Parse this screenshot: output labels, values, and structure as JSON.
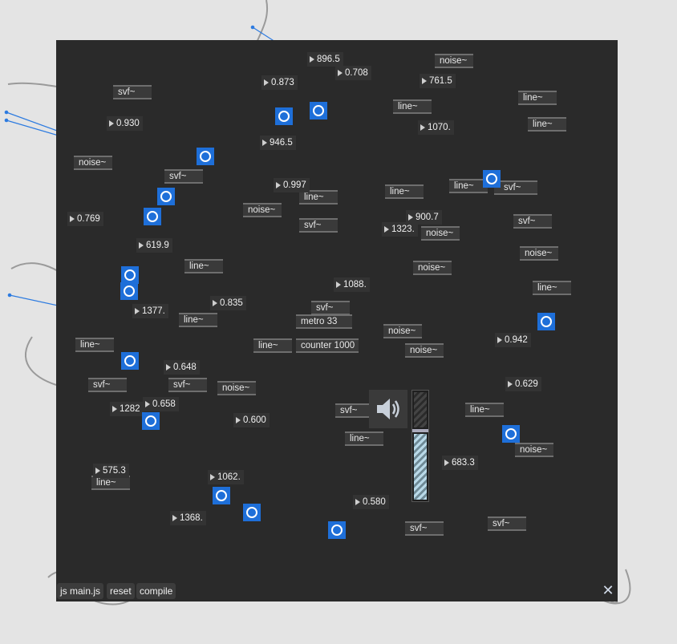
{
  "objects": [
    {
      "label": "svf~"
    },
    {
      "label": "noise~"
    },
    {
      "label": "noise~"
    },
    {
      "label": "svf~"
    },
    {
      "label": "line~"
    },
    {
      "label": "line~"
    },
    {
      "label": "line~"
    },
    {
      "label": "line~"
    },
    {
      "label": "svf~"
    },
    {
      "label": "noise~"
    },
    {
      "label": "svf~"
    },
    {
      "label": "line~"
    },
    {
      "label": "noise~"
    },
    {
      "label": "svf~"
    },
    {
      "label": "noise~"
    },
    {
      "label": "line~"
    },
    {
      "label": "line~"
    },
    {
      "label": "line~"
    },
    {
      "label": "line~"
    },
    {
      "label": "noise~"
    },
    {
      "label": "noise~"
    },
    {
      "label": "noise~"
    },
    {
      "label": "metro 33"
    },
    {
      "label": "counter 1000"
    },
    {
      "label": "line~"
    },
    {
      "label": "svf~"
    },
    {
      "label": "svf~"
    },
    {
      "label": "noise~"
    },
    {
      "label": "svf~"
    },
    {
      "label": "line~"
    },
    {
      "label": "line~"
    },
    {
      "label": "noise~"
    },
    {
      "label": "line~"
    },
    {
      "label": "svf~"
    },
    {
      "label": "svf~"
    },
    {
      "label": "svf~"
    },
    {
      "label": "line~"
    },
    {
      "label": "svf~"
    }
  ],
  "numbers": [
    {
      "value": "896.5"
    },
    {
      "value": "0.873"
    },
    {
      "value": "0.708"
    },
    {
      "value": "761.5"
    },
    {
      "value": "0.930"
    },
    {
      "value": "1070."
    },
    {
      "value": "946.5"
    },
    {
      "value": "0.997"
    },
    {
      "value": "0.769"
    },
    {
      "value": "900.7"
    },
    {
      "value": "1323."
    },
    {
      "value": "619.9"
    },
    {
      "value": "1088."
    },
    {
      "value": "1377."
    },
    {
      "value": "0.835"
    },
    {
      "value": "0.942"
    },
    {
      "value": "0.648"
    },
    {
      "value": "0.629"
    },
    {
      "value": "1282"
    },
    {
      "value": "0.658"
    },
    {
      "value": "0.600"
    },
    {
      "value": "575.3"
    },
    {
      "value": "683.3"
    },
    {
      "value": "1062."
    },
    {
      "value": "0.580"
    },
    {
      "value": "1368."
    }
  ],
  "toolbar": {
    "js_label": "js main.js",
    "reset_label": "reset",
    "compile_label": "compile"
  },
  "close_glyph": "✕",
  "icons": {
    "bang": "bang-icon",
    "speaker": "speaker-icon",
    "close": "close-icon"
  },
  "colors": {
    "canvas": "#2a2a2a",
    "page": "#e4e4e4",
    "bang": "#1e6fd9",
    "signal_patch": "#d8e8a0",
    "control_patch": "#a8a8a8",
    "blue_patch": "#2d7be0"
  }
}
